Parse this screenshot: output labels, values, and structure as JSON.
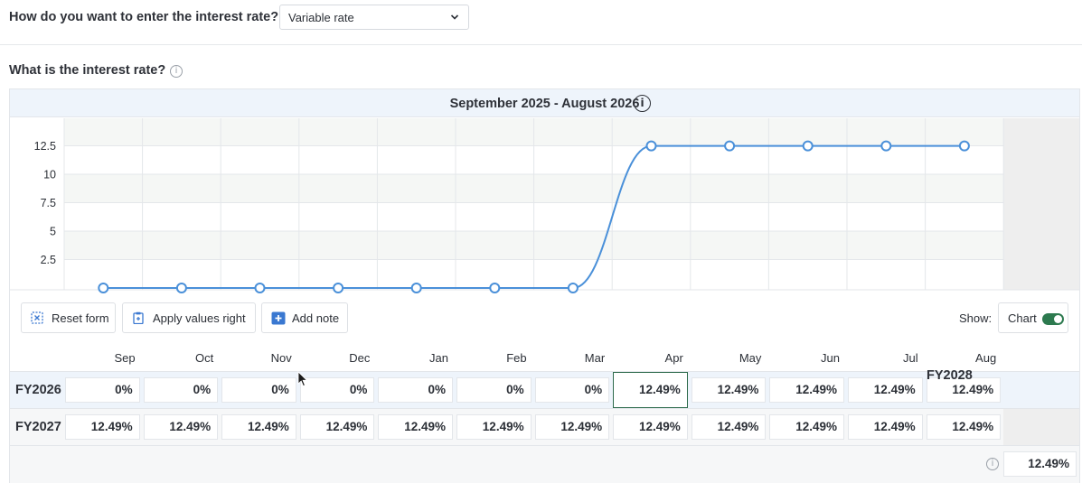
{
  "entry": {
    "question": "How do you want to enter the interest rate?",
    "selected": "Variable rate"
  },
  "rate": {
    "question": "What is the interest rate?",
    "info_icon": "info-icon"
  },
  "period": {
    "label": "September 2025 - August 2026",
    "info_icon": "i"
  },
  "chart_data": {
    "type": "line",
    "x": [
      "Sep",
      "Oct",
      "Nov",
      "Dec",
      "Jan",
      "Feb",
      "Mar",
      "Apr",
      "May",
      "Jun",
      "Jul",
      "Aug"
    ],
    "series": [
      {
        "values": [
          0,
          0,
          0,
          0,
          0,
          0,
          0,
          12.49,
          12.49,
          12.49,
          12.49,
          12.49
        ]
      }
    ],
    "yticks": [
      "2.5",
      "5",
      "7.5",
      "10",
      "12.5"
    ],
    "ylim": [
      0,
      15
    ],
    "color": "#4a90d9",
    "grid": true
  },
  "toolbar": {
    "reset": "Reset form",
    "apply": "Apply values right",
    "add_note": "Add note",
    "show": "Show:",
    "chart": "Chart",
    "chart_on": true
  },
  "months": [
    "Sep",
    "Oct",
    "Nov",
    "Dec",
    "Jan",
    "Feb",
    "Mar",
    "Apr",
    "May",
    "Jun",
    "Jul",
    "Aug"
  ],
  "rows": [
    {
      "label": "FY2026",
      "values": [
        "0%",
        "0%",
        "0%",
        "0%",
        "0%",
        "0%",
        "0%",
        "12.49%",
        "12.49%",
        "12.49%",
        "12.49%",
        "12.49%"
      ]
    },
    {
      "label": "FY2027",
      "values": [
        "12.49%",
        "12.49%",
        "12.49%",
        "12.49%",
        "12.49%",
        "12.49%",
        "12.49%",
        "12.49%",
        "12.49%",
        "12.49%",
        "12.49%",
        "12.49%"
      ]
    }
  ],
  "fy2028": {
    "label": "FY2028",
    "value": "12.49%"
  },
  "colors": {
    "accent": "#2d7a4f",
    "line": "#4a90d9",
    "header_bg": "#eef4fb"
  }
}
